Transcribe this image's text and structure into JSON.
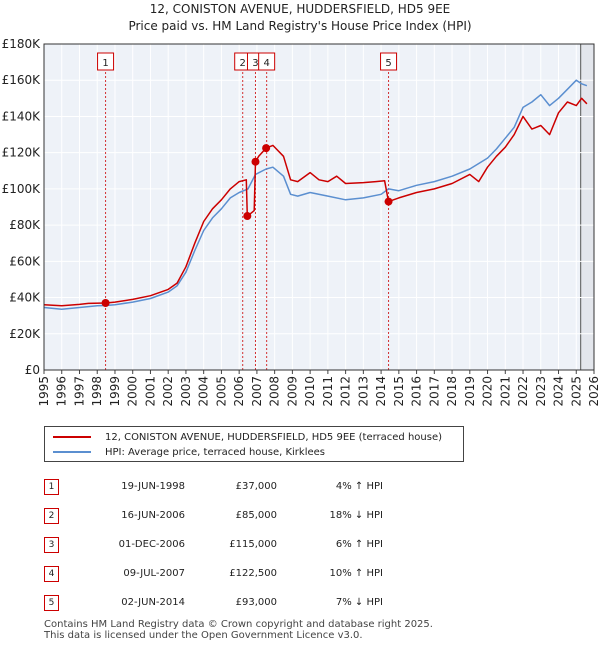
{
  "header": {
    "line1": "12, CONISTON AVENUE, HUDDERSFIELD, HD5 9EE",
    "line2": "Price paid vs. HM Land Registry's House Price Index (HPI)"
  },
  "chart_data": {
    "type": "line",
    "title": "12, CONISTON AVENUE, HUDDERSFIELD, HD5 9EE — Price paid vs. HM Land Registry's House Price Index (HPI)",
    "xlabel": "",
    "ylabel": "",
    "xlim": [
      1995.0,
      2026.0
    ],
    "ylim": [
      0,
      180000
    ],
    "x_ticks": [
      1995,
      1996,
      1997,
      1998,
      1999,
      2000,
      2001,
      2002,
      2003,
      2004,
      2005,
      2006,
      2007,
      2008,
      2009,
      2010,
      2011,
      2012,
      2013,
      2014,
      2015,
      2016,
      2017,
      2018,
      2019,
      2020,
      2021,
      2022,
      2023,
      2024,
      2025,
      2026
    ],
    "y_ticks": [
      {
        "value": 0,
        "label": "£0"
      },
      {
        "value": 20000,
        "label": "£20K"
      },
      {
        "value": 40000,
        "label": "£40K"
      },
      {
        "value": 60000,
        "label": "£60K"
      },
      {
        "value": 80000,
        "label": "£80K"
      },
      {
        "value": 100000,
        "label": "£100K"
      },
      {
        "value": 120000,
        "label": "£120K"
      },
      {
        "value": 140000,
        "label": "£140K"
      },
      {
        "value": 160000,
        "label": "£160K"
      },
      {
        "value": 180000,
        "label": "£180K"
      }
    ],
    "grid": true,
    "forecast_from": 2025.25,
    "series": [
      {
        "name": "12, CONISTON AVENUE, HUDDERSFIELD, HD5 9EE (terraced house)",
        "color": "#cc0000",
        "x": [
          1995.0,
          1996.0,
          1997.0,
          1997.5,
          1998.47,
          1999.0,
          2000.0,
          2001.0,
          2002.0,
          2002.5,
          2003.0,
          2003.5,
          2004.0,
          2004.5,
          2005.0,
          2005.5,
          2006.0,
          2006.4,
          2006.46,
          2006.6,
          2006.85,
          2006.92,
          2007.1,
          2007.52,
          2007.9,
          2008.5,
          2008.9,
          2009.3,
          2010.0,
          2010.5,
          2011.0,
          2011.5,
          2012.0,
          2013.0,
          2013.7,
          2014.2,
          2014.42,
          2015.0,
          2016.0,
          2017.0,
          2018.0,
          2019.0,
          2019.5,
          2020.0,
          2020.5,
          2021.0,
          2021.5,
          2022.0,
          2022.5,
          2023.0,
          2023.5,
          2024.0,
          2024.5,
          2025.0,
          2025.3,
          2025.6
        ],
        "y": [
          36000,
          35500,
          36200,
          36800,
          37000,
          37500,
          39000,
          41000,
          44500,
          48000,
          57000,
          70000,
          82000,
          89000,
          94000,
          100000,
          104000,
          105000,
          85000,
          86000,
          88000,
          115000,
          118000,
          122500,
          124000,
          118000,
          105000,
          104000,
          109000,
          105000,
          104000,
          107000,
          103000,
          103500,
          104000,
          104500,
          93000,
          95000,
          98000,
          100000,
          103000,
          108000,
          104000,
          112000,
          118000,
          123000,
          130000,
          140000,
          133000,
          135000,
          130000,
          142000,
          148000,
          146000,
          150000,
          147000
        ]
      },
      {
        "name": "HPI: Average price, terraced house, Kirklees",
        "color": "#5b8fd0",
        "x": [
          1995.0,
          1996.0,
          1997.0,
          1998.0,
          1998.47,
          1999.0,
          2000.0,
          2001.0,
          2002.0,
          2002.5,
          2003.0,
          2003.5,
          2004.0,
          2004.5,
          2005.0,
          2005.5,
          2006.0,
          2006.5,
          2006.92,
          2007.52,
          2007.9,
          2008.5,
          2008.9,
          2009.3,
          2010.0,
          2011.0,
          2012.0,
          2013.0,
          2014.0,
          2014.42,
          2015.0,
          2016.0,
          2017.0,
          2018.0,
          2019.0,
          2020.0,
          2020.5,
          2021.0,
          2021.5,
          2022.0,
          2022.5,
          2023.0,
          2023.5,
          2024.0,
          2024.5,
          2025.0,
          2025.3,
          2025.6
        ],
        "y": [
          34500,
          33500,
          34500,
          35500,
          35600,
          36000,
          37500,
          39500,
          43000,
          46500,
          54000,
          66000,
          77000,
          84000,
          89000,
          95000,
          98000,
          100000,
          108000,
          111000,
          112000,
          107000,
          97000,
          96000,
          98000,
          96000,
          94000,
          95000,
          97000,
          100000,
          99000,
          102000,
          104000,
          107000,
          111000,
          117000,
          122000,
          128000,
          134000,
          145000,
          148000,
          152000,
          146000,
          150000,
          155000,
          160000,
          158000,
          157000
        ]
      }
    ],
    "sales": [
      {
        "id": "1",
        "x": 1998.47,
        "price": 37000
      },
      {
        "id": "2",
        "x": 2006.46,
        "price": 85000
      },
      {
        "id": "3",
        "x": 2006.92,
        "price": 115000
      },
      {
        "id": "4",
        "x": 2007.52,
        "price": 122500
      },
      {
        "id": "5",
        "x": 2014.42,
        "price": 93000
      }
    ],
    "marker_labels": [
      {
        "label": "1",
        "x": 1998.47
      },
      {
        "label": "2",
        "x": 2006.2
      },
      {
        "label": "3",
        "x": 2006.92
      },
      {
        "label": "4",
        "x": 2007.55
      },
      {
        "label": "5",
        "x": 2014.42
      }
    ]
  },
  "legend": {
    "property_label": "12, CONISTON AVENUE, HUDDERSFIELD, HD5 9EE (terraced house)",
    "hpi_label": "HPI: Average price, terraced house, Kirklees",
    "property_color": "#cc0000",
    "hpi_color": "#5b8fd0"
  },
  "transactions": [
    {
      "num": "1",
      "date": "19-JUN-1998",
      "price": "£37,000",
      "hpi": "4% ↑ HPI"
    },
    {
      "num": "2",
      "date": "16-JUN-2006",
      "price": "£85,000",
      "hpi": "18% ↓ HPI"
    },
    {
      "num": "3",
      "date": "01-DEC-2006",
      "price": "£115,000",
      "hpi": "6% ↑ HPI"
    },
    {
      "num": "4",
      "date": "09-JUL-2007",
      "price": "£122,500",
      "hpi": "10% ↑ HPI"
    },
    {
      "num": "5",
      "date": "02-JUN-2014",
      "price": "£93,000",
      "hpi": "7% ↓ HPI"
    }
  ],
  "footer": {
    "line1": "Contains HM Land Registry data © Crown copyright and database right 2025.",
    "line2": "This data is licensed under the Open Government Licence v3.0."
  }
}
